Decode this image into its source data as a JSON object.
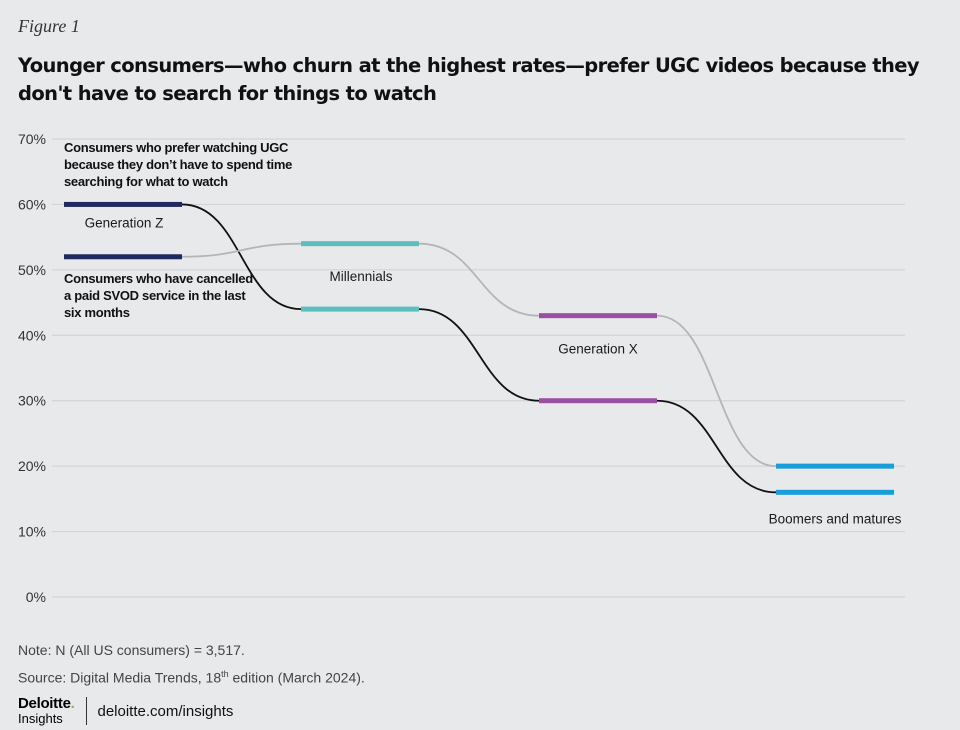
{
  "figure_label": "Figure 1",
  "title": "Younger consumers—who churn at the highest rates—prefer UGC videos because they don't have to search for things to watch",
  "note": "Note: N (All US consumers) = 3,517.",
  "source": {
    "prefix": "Source: Digital Media Trends, 18",
    "superscript": "th",
    "suffix": " edition (March 2024)."
  },
  "footer": {
    "logo_main": "Deloitte",
    "logo_dot": ".",
    "logo_sub": "Insights",
    "url": "deloitte.com/insights"
  },
  "colors": {
    "background": "#e8e9eb",
    "gridline": "#cfd0d3",
    "ugc_connector": "#111111",
    "svod_connector": "#b3b5b8",
    "generation_z": "#1e2a5e",
    "millennials": "#5bbfbd",
    "generation_x": "#9b4fa3",
    "boomers": "#1a9ed9"
  },
  "chart_data": {
    "type": "line",
    "y_ticks": [
      "0%",
      "10%",
      "20%",
      "30%",
      "40%",
      "50%",
      "60%",
      "70%"
    ],
    "ylim": [
      0,
      70
    ],
    "grid": true,
    "categories": [
      "Generation Z",
      "Millennials",
      "Generation X",
      "Boomers and matures"
    ],
    "category_colors": [
      "#1e2a5e",
      "#5bbfbd",
      "#9b4fa3",
      "#1a9ed9"
    ],
    "series": [
      {
        "name": "Consumers who prefer watching UGC because they don’t have to spend time searching for what to watch",
        "values": [
          60,
          44,
          30,
          16
        ],
        "connector": "#111111"
      },
      {
        "name": "Consumers who have cancelled a paid SVOD service in the last six months",
        "values": [
          52,
          54,
          43,
          20
        ],
        "connector": "#b3b5b8"
      }
    ],
    "series_label_lines": [
      [
        "Consumers who prefer watching UGC",
        "because they don’t have to spend time",
        "searching for what to watch"
      ],
      [
        "Consumers who have cancelled",
        "a paid SVOD service in the last",
        "six months"
      ]
    ]
  }
}
